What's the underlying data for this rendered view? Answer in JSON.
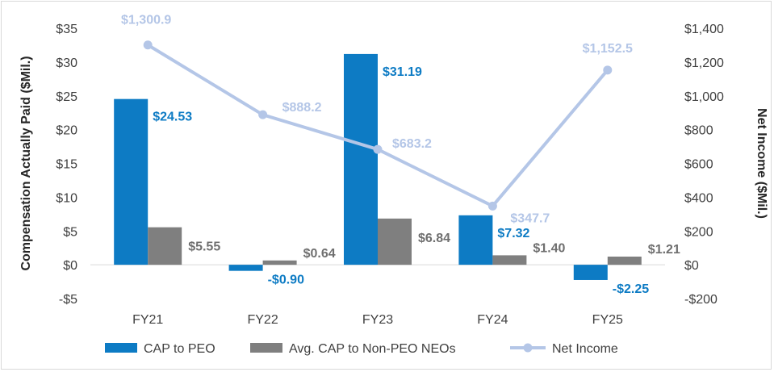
{
  "chart_data": {
    "type": "bar",
    "categories": [
      "FY21",
      "FY22",
      "FY23",
      "FY24",
      "FY25"
    ],
    "series": [
      {
        "name": "CAP to PEO",
        "values": [
          24.53,
          -0.9,
          31.19,
          7.32,
          -2.25
        ],
        "labels": [
          "$24.53",
          "-$0.90",
          "$31.19",
          "$7.32",
          "-$2.25"
        ],
        "axis": "left",
        "color": "#0d7bc4"
      },
      {
        "name": "Avg. CAP to Non-PEO NEOs",
        "values": [
          5.55,
          0.64,
          6.84,
          1.4,
          1.21
        ],
        "labels": [
          "$5.55",
          "$0.64",
          "$6.84",
          "$1.40",
          "$1.21"
        ],
        "axis": "left",
        "color": "#7f7f7f"
      },
      {
        "name": "Net Income",
        "type": "line",
        "values": [
          1300.9,
          888.2,
          683.2,
          347.7,
          1152.5
        ],
        "labels": [
          "$1,300.9",
          "$888.2",
          "$683.2",
          "$347.7",
          "$1,152.5"
        ],
        "axis": "right",
        "color": "#b4c6e7"
      }
    ],
    "ylabel": "Compensation Actually Paid ($Mil.)",
    "y2label": "Net Income ($Mil.)",
    "ylim": [
      -5,
      35
    ],
    "y2lim": [
      -200,
      1400
    ],
    "yticks": [
      -5,
      0,
      5,
      10,
      15,
      20,
      25,
      30,
      35
    ],
    "ytick_labels": [
      "-$5",
      "$0",
      "$5",
      "$10",
      "$15",
      "$20",
      "$25",
      "$30",
      "$35"
    ],
    "y2ticks": [
      -200,
      0,
      200,
      400,
      600,
      800,
      1000,
      1200,
      1400
    ],
    "y2tick_labels": [
      "-$200",
      "$0",
      "$200",
      "$400",
      "$600",
      "$800",
      "$1,000",
      "$1,200",
      "$1,400"
    ],
    "grid": false,
    "legend": "bottom"
  }
}
